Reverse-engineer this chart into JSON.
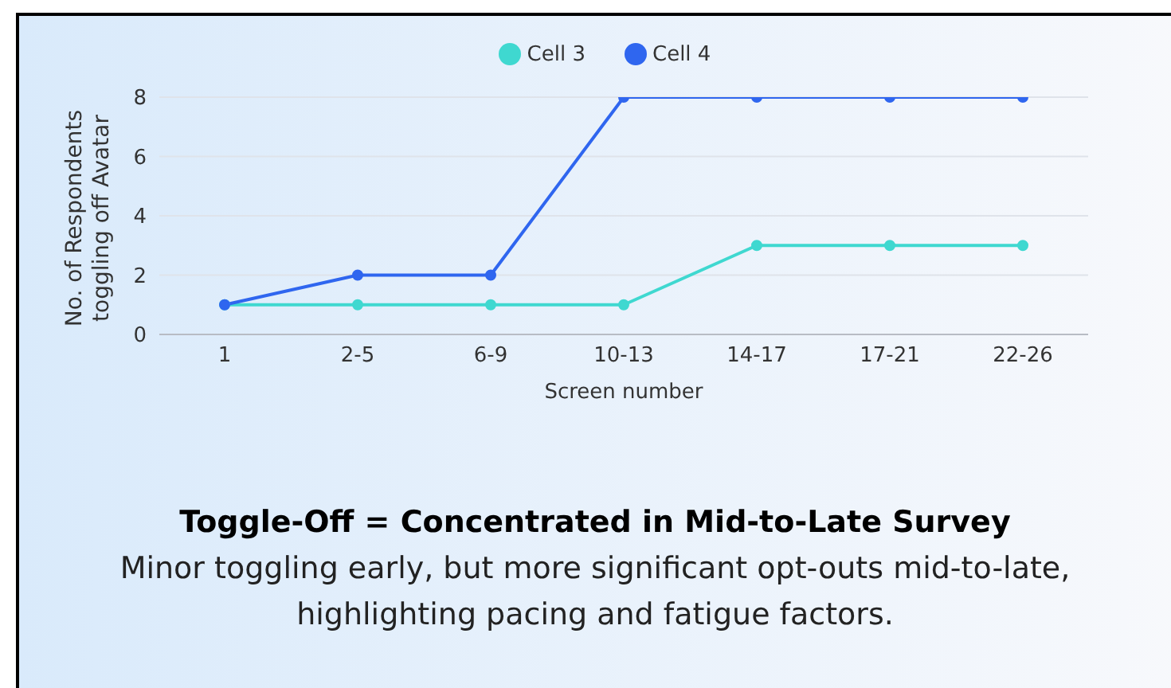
{
  "chart_data": {
    "type": "line",
    "title": "Toggle-Off = Concentrated in Mid-to-Late Survey",
    "subtitle": "Minor toggling early, but more significant opt-outs mid-to-late, highlighting pacing and fatigue factors.",
    "xlabel": "Screen number",
    "ylabel": "No. of Respondents toggling off Avatar",
    "categories": [
      "1",
      "2-5",
      "6-9",
      "10-13",
      "14-17",
      "17-21",
      "22-26"
    ],
    "series": [
      {
        "name": "Cell 3",
        "color": "#3fd8d0",
        "values": [
          1,
          1,
          1,
          1,
          3,
          3,
          3
        ]
      },
      {
        "name": "Cell 4",
        "color": "#2f66ef",
        "values": [
          1,
          2,
          2,
          8,
          8,
          8,
          8
        ]
      }
    ],
    "ylim": [
      0,
      8
    ],
    "yticks": [
      0,
      2,
      4,
      6,
      8
    ],
    "grid": "y",
    "legend": "top",
    "marker": "circle",
    "line_style": "solid"
  }
}
